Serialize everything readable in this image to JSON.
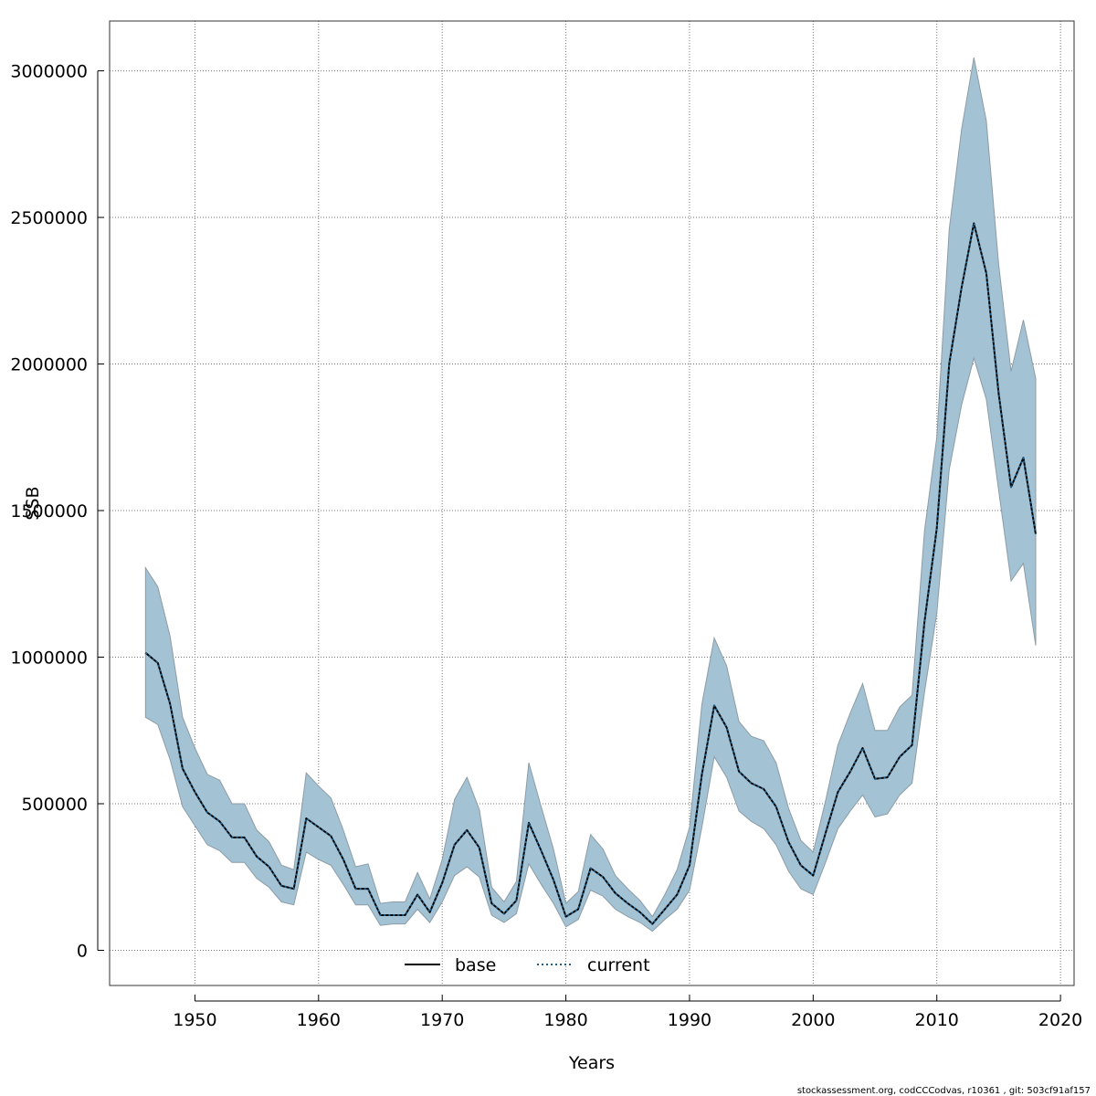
{
  "chart_data": {
    "type": "line",
    "xlabel": "Years",
    "ylabel": "SSB",
    "xlim": [
      1943.1,
      2021.1
    ],
    "ylim": [
      -120000,
      3170000
    ],
    "xticks": [
      1950,
      1960,
      1970,
      1980,
      1990,
      2000,
      2010,
      2020
    ],
    "yticks": [
      0,
      500000,
      1000000,
      1500000,
      2000000,
      2500000,
      3000000
    ],
    "xtick_labels": [
      "1950",
      "1960",
      "1970",
      "1980",
      "1990",
      "2000",
      "2010",
      "2020"
    ],
    "ytick_labels": [
      "0",
      "500000",
      "1000000",
      "1500000",
      "2000000",
      "2500000",
      "3000000"
    ],
    "grid": true,
    "legend_position": "bottom-center",
    "colors": {
      "band": "#a3c3d5",
      "band_edge": "#8c9ca6",
      "base": "#000000",
      "current": "#1f5f8b"
    },
    "x": [
      1946,
      1947,
      1948,
      1949,
      1950,
      1951,
      1952,
      1953,
      1954,
      1955,
      1956,
      1957,
      1958,
      1959,
      1960,
      1961,
      1962,
      1963,
      1964,
      1965,
      1966,
      1967,
      1968,
      1969,
      1970,
      1971,
      1972,
      1973,
      1974,
      1975,
      1976,
      1977,
      1978,
      1979,
      1980,
      1981,
      1982,
      1983,
      1984,
      1985,
      1986,
      1987,
      1988,
      1989,
      1990,
      1991,
      1992,
      1993,
      1994,
      1995,
      1996,
      1997,
      1998,
      1999,
      2000,
      2001,
      2002,
      2003,
      2004,
      2005,
      2006,
      2007,
      2008,
      2009,
      2010,
      2011,
      2012,
      2013,
      2014,
      2015,
      2016,
      2017,
      2018
    ],
    "series": [
      {
        "name": "base",
        "values": [
          1015000,
          980000,
          840000,
          620000,
          540000,
          470000,
          440000,
          385000,
          385000,
          320000,
          285000,
          220000,
          210000,
          450000,
          420000,
          390000,
          310000,
          210000,
          210000,
          120000,
          120000,
          120000,
          190000,
          130000,
          230000,
          360000,
          410000,
          350000,
          160000,
          125000,
          170000,
          435000,
          340000,
          240000,
          115000,
          140000,
          280000,
          250000,
          195000,
          160000,
          130000,
          90000,
          140000,
          190000,
          290000,
          600000,
          835000,
          760000,
          610000,
          570000,
          550000,
          490000,
          370000,
          290000,
          255000,
          400000,
          540000,
          610000,
          690000,
          585000,
          590000,
          660000,
          700000,
          1120000,
          1440000,
          2000000,
          2260000,
          2480000,
          2310000,
          1900000,
          1580000,
          1680000,
          1420000
        ]
      },
      {
        "name": "current",
        "values": [
          1015000,
          980000,
          840000,
          620000,
          540000,
          470000,
          440000,
          385000,
          385000,
          320000,
          285000,
          220000,
          210000,
          450000,
          420000,
          390000,
          310000,
          210000,
          210000,
          120000,
          120000,
          120000,
          190000,
          130000,
          230000,
          360000,
          410000,
          350000,
          160000,
          125000,
          170000,
          435000,
          340000,
          240000,
          115000,
          140000,
          280000,
          250000,
          195000,
          160000,
          130000,
          90000,
          140000,
          190000,
          290000,
          600000,
          835000,
          760000,
          610000,
          570000,
          550000,
          490000,
          370000,
          290000,
          255000,
          400000,
          540000,
          610000,
          690000,
          585000,
          590000,
          660000,
          700000,
          1120000,
          1440000,
          2000000,
          2260000,
          2480000,
          2310000,
          1900000,
          1580000,
          1680000,
          1420000
        ]
      }
    ],
    "band_upper": [
      1305000,
      1240000,
      1070000,
      795000,
      690000,
      600000,
      580000,
      500000,
      500000,
      410000,
      370000,
      290000,
      275000,
      605000,
      560000,
      520000,
      410000,
      285000,
      295000,
      160000,
      165000,
      165000,
      265000,
      175000,
      310000,
      515000,
      590000,
      480000,
      215000,
      165000,
      235000,
      640000,
      490000,
      345000,
      160000,
      200000,
      395000,
      345000,
      255000,
      210000,
      170000,
      115000,
      190000,
      275000,
      420000,
      840000,
      1065000,
      970000,
      780000,
      730000,
      715000,
      640000,
      485000,
      375000,
      335000,
      510000,
      700000,
      810000,
      910000,
      750000,
      750000,
      830000,
      870000,
      1430000,
      1750000,
      2460000,
      2800000,
      3045000,
      2830000,
      2340000,
      1975000,
      2150000,
      1950000
    ],
    "band_lower": [
      795000,
      770000,
      650000,
      490000,
      425000,
      360000,
      340000,
      300000,
      300000,
      245000,
      215000,
      165000,
      155000,
      335000,
      310000,
      290000,
      225000,
      155000,
      155000,
      85000,
      90000,
      90000,
      140000,
      95000,
      165000,
      255000,
      285000,
      250000,
      120000,
      95000,
      125000,
      295000,
      225000,
      160000,
      80000,
      105000,
      205000,
      185000,
      140000,
      115000,
      95000,
      65000,
      105000,
      140000,
      205000,
      420000,
      660000,
      590000,
      475000,
      440000,
      415000,
      360000,
      270000,
      210000,
      190000,
      300000,
      415000,
      475000,
      530000,
      455000,
      465000,
      530000,
      570000,
      880000,
      1150000,
      1640000,
      1860000,
      2020000,
      1880000,
      1570000,
      1260000,
      1320000,
      1040000
    ],
    "footer": "stockassessment.org, codCCCodvas, r10361 , git: 503cf91af157"
  }
}
